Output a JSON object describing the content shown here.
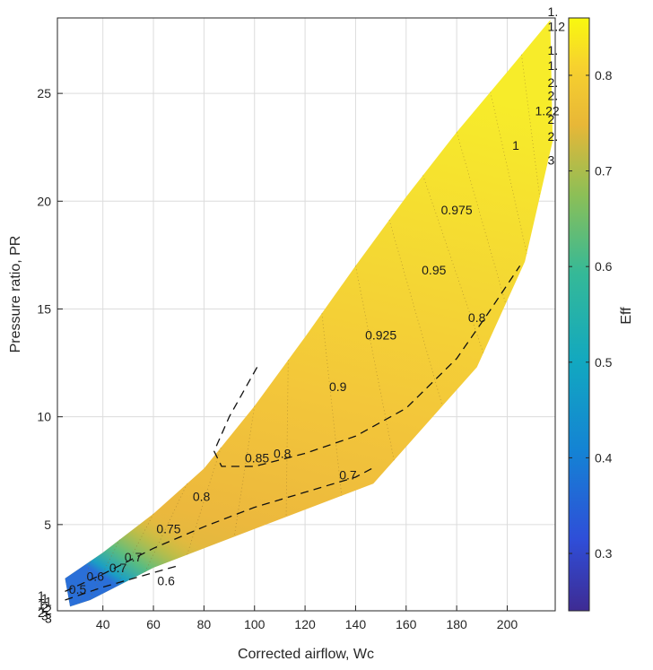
{
  "chart_data": {
    "type": "contour",
    "xlabel": "Corrected airflow, Wc",
    "ylabel": "Pressure ratio, PR",
    "xlim": [
      22,
      219
    ],
    "ylim": [
      1,
      28.5
    ],
    "xticks": [
      "40",
      "60",
      "80",
      "100",
      "120",
      "140",
      "160",
      "180",
      "200"
    ],
    "yticks": [
      "5",
      "10",
      "15",
      "20",
      "25"
    ],
    "grid": true,
    "colorbar": {
      "label": "Eff",
      "range": [
        0.24,
        0.86
      ],
      "ticks": [
        "0.3",
        "0.4",
        "0.5",
        "0.6",
        "0.7",
        "0.8"
      ],
      "colormap": "parula"
    },
    "map_boundary": {
      "surge_line": [
        [
          25,
          2.5
        ],
        [
          40,
          3.7
        ],
        [
          60,
          5.5
        ],
        [
          80,
          7.6
        ],
        [
          100,
          10.5
        ],
        [
          120,
          13.7
        ],
        [
          140,
          17.0
        ],
        [
          160,
          20.2
        ],
        [
          180,
          23.2
        ],
        [
          200,
          26.0
        ],
        [
          217,
          28.4
        ]
      ],
      "choke_line": [
        [
          218,
          22.8
        ],
        [
          207,
          17.2
        ],
        [
          188,
          12.3
        ],
        [
          147,
          6.9
        ],
        [
          100,
          4.8
        ],
        [
          60,
          3.0
        ],
        [
          35,
          1.5
        ],
        [
          27,
          1.2
        ]
      ]
    },
    "efficiency_contours": [
      {
        "level": 0.975,
        "label": "0.975",
        "label_at": [
          180,
          19.6
        ]
      },
      {
        "level": 0.95,
        "label": "0.95",
        "label_at": [
          171,
          16.8
        ]
      },
      {
        "level": 0.925,
        "label": "0.925",
        "label_at": [
          150,
          13.8
        ]
      },
      {
        "level": 0.9,
        "label": "0.9",
        "label_at": [
          133,
          11.4
        ]
      },
      {
        "level": 0.85,
        "label": "0.85",
        "label_at": [
          101,
          8.1
        ]
      },
      {
        "level": 0.8,
        "label": "0.8",
        "label_at": [
          111,
          8.3
        ]
      },
      {
        "level": 0.8,
        "label": "0.8",
        "label_at": [
          188,
          14.6
        ]
      },
      {
        "level": 0.8,
        "label": "0.8",
        "label_at": [
          79,
          6.3
        ]
      },
      {
        "level": 0.75,
        "label": "0.75",
        "label_at": [
          66,
          4.8
        ]
      },
      {
        "level": 0.7,
        "label": "0.7",
        "label_at": [
          137,
          7.3
        ]
      },
      {
        "level": 0.7,
        "label": "0.7",
        "label_at": [
          52,
          3.5
        ]
      },
      {
        "level": 0.7,
        "label": "0.7",
        "label_at": [
          46,
          3.0
        ]
      },
      {
        "level": 0.6,
        "label": "0.6",
        "label_at": [
          65,
          2.4
        ]
      },
      {
        "level": 0.6,
        "label": "0.6",
        "label_at": [
          37,
          2.6
        ]
      },
      {
        "level": 0.5,
        "label": "0.5",
        "label_at": [
          30,
          2.0
        ]
      }
    ],
    "dashed_contours": [
      {
        "level": 0.9,
        "points": [
          [
            101,
            12.3
          ],
          [
            90,
            10.0
          ],
          [
            84,
            8.4
          ],
          [
            87,
            7.7
          ],
          [
            100,
            7.7
          ],
          [
            120,
            8.3
          ],
          [
            140,
            9.1
          ],
          [
            160,
            10.4
          ],
          [
            180,
            12.7
          ],
          [
            193,
            14.9
          ],
          [
            205,
            17.0
          ]
        ]
      },
      {
        "level": 0.7,
        "points": [
          [
            25,
            1.9
          ],
          [
            40,
            2.7
          ],
          [
            60,
            3.9
          ],
          [
            80,
            4.9
          ],
          [
            100,
            5.8
          ],
          [
            120,
            6.5
          ],
          [
            140,
            7.2
          ],
          [
            148,
            7.7
          ]
        ]
      },
      {
        "level": 0.6,
        "points": [
          [
            25,
            1.5
          ],
          [
            40,
            2.1
          ],
          [
            55,
            2.6
          ],
          [
            70,
            3.1
          ]
        ]
      }
    ],
    "speed_line_labels": [
      {
        "text": "1.",
        "at": [
          216,
          28.8
        ]
      },
      {
        "text": "1.2",
        "at": [
          216,
          28.1
        ]
      },
      {
        "text": "1.",
        "at": [
          216,
          27.0
        ]
      },
      {
        "text": "1.",
        "at": [
          216,
          26.3
        ]
      },
      {
        "text": "2.",
        "at": [
          216,
          25.5
        ]
      },
      {
        "text": "2.",
        "at": [
          216,
          24.9
        ]
      },
      {
        "text": "1.22",
        "at": [
          211,
          24.2
        ]
      },
      {
        "text": "2",
        "at": [
          216,
          23.8
        ]
      },
      {
        "text": "2.",
        "at": [
          216,
          23.0
        ]
      },
      {
        "text": "1",
        "at": [
          202,
          22.6
        ]
      },
      {
        "text": "3",
        "at": [
          216,
          21.9
        ]
      }
    ],
    "low_end_labels": [
      "1",
      "1",
      "1",
      "1",
      "2",
      "2",
      "2",
      "3",
      "3"
    ]
  }
}
